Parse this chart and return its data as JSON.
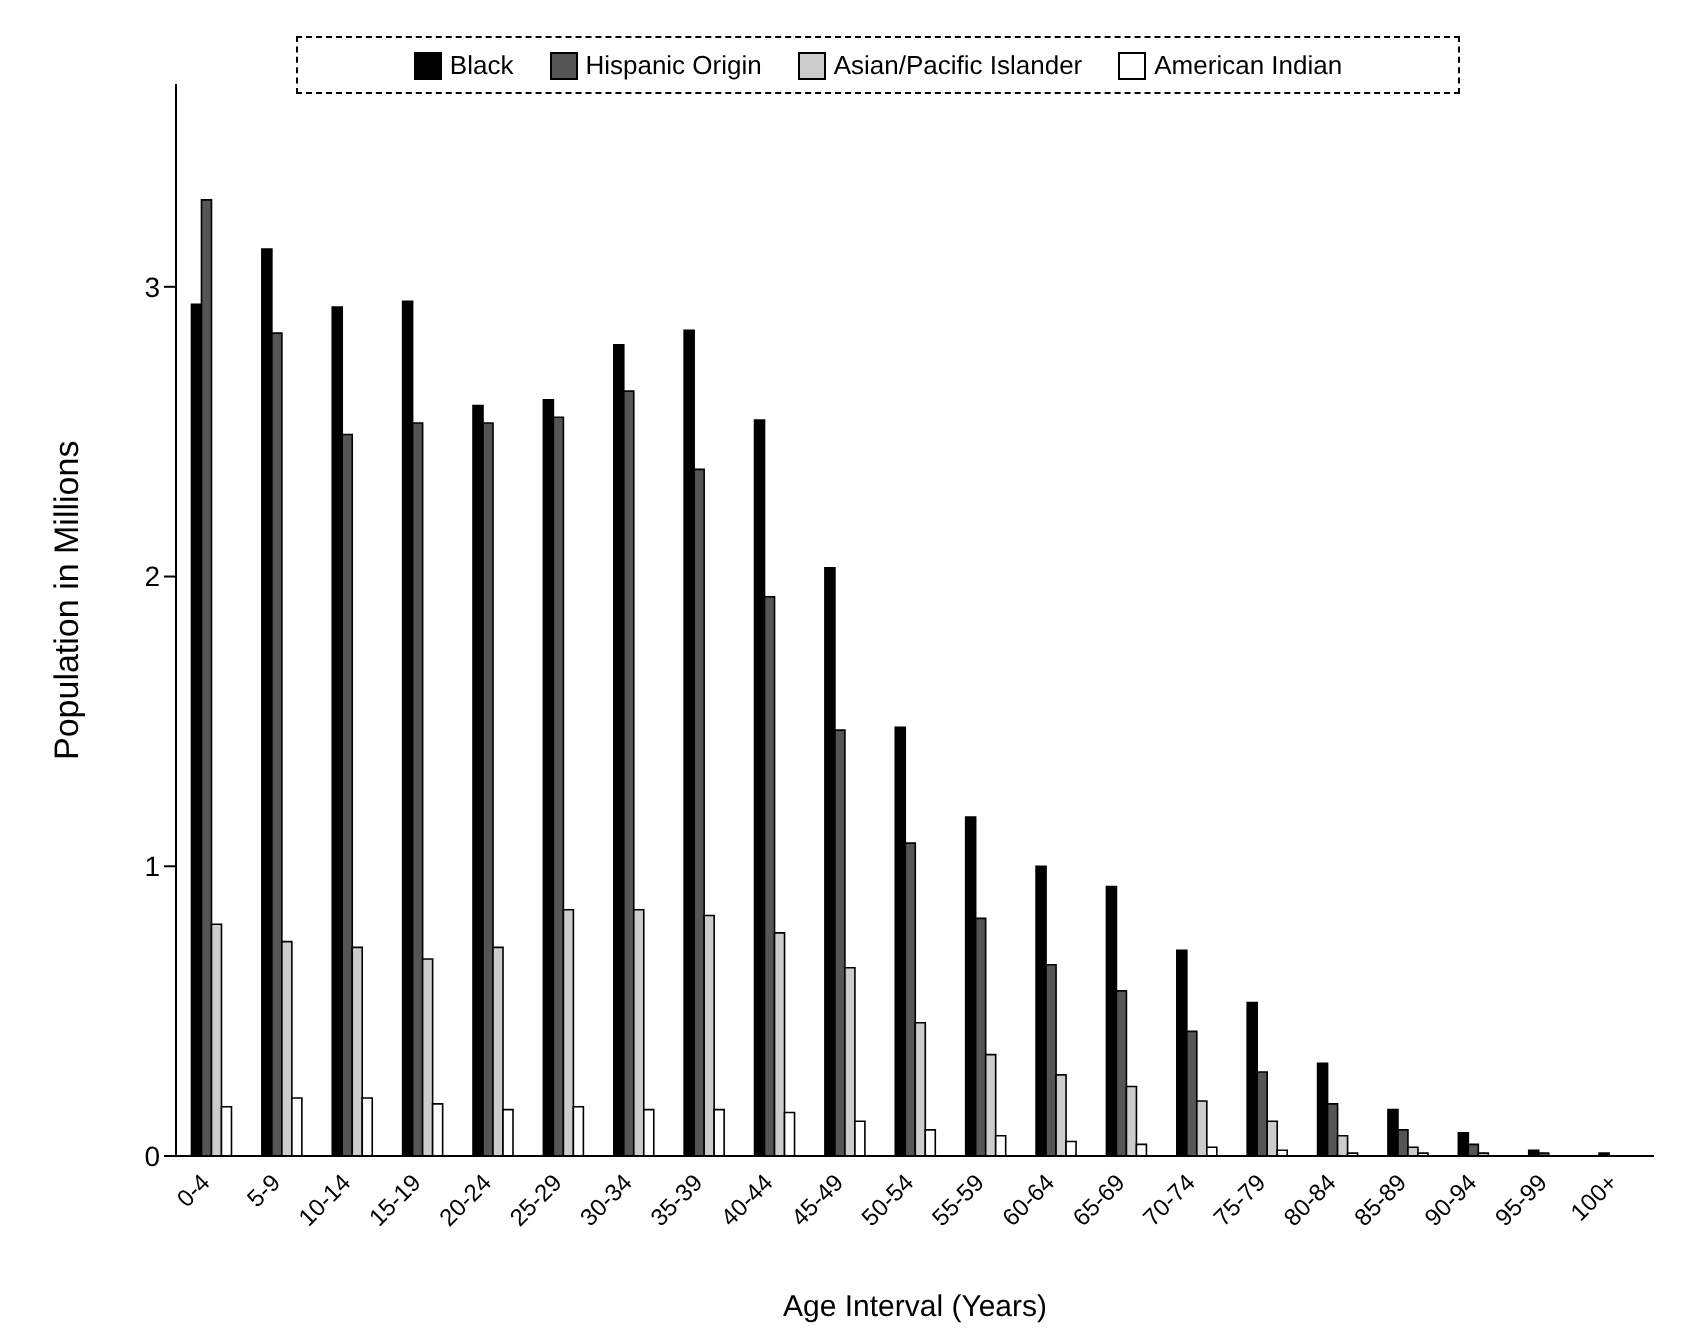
{
  "chart_data": {
    "type": "bar",
    "xlabel": "Age Interval (Years)",
    "ylabel": "Population in Millions",
    "categories": [
      "0-4",
      "5-9",
      "10-14",
      "15-19",
      "20-24",
      "25-29",
      "30-34",
      "35-39",
      "40-44",
      "45-49",
      "50-54",
      "55-59",
      "60-64",
      "65-69",
      "70-74",
      "75-79",
      "80-84",
      "85-89",
      "90-94",
      "95-99",
      "100+"
    ],
    "series": [
      {
        "name": "Black",
        "color": "#000000",
        "values": [
          2.94,
          3.13,
          2.93,
          2.95,
          2.59,
          2.61,
          2.8,
          2.85,
          2.54,
          2.03,
          1.48,
          1.17,
          1.0,
          0.93,
          0.71,
          0.53,
          0.32,
          0.16,
          0.08,
          0.02,
          0.01
        ]
      },
      {
        "name": "Hispanic Origin",
        "color": "#555555",
        "values": [
          3.3,
          2.84,
          2.49,
          2.53,
          2.53,
          2.55,
          2.64,
          2.37,
          1.93,
          1.47,
          1.08,
          0.82,
          0.66,
          0.57,
          0.43,
          0.29,
          0.18,
          0.09,
          0.04,
          0.01,
          0.0
        ]
      },
      {
        "name": "Asian/Pacific Islander",
        "color": "#cccccc",
        "values": [
          0.8,
          0.74,
          0.72,
          0.68,
          0.72,
          0.85,
          0.85,
          0.83,
          0.77,
          0.65,
          0.46,
          0.35,
          0.28,
          0.24,
          0.19,
          0.12,
          0.07,
          0.03,
          0.01,
          0.0,
          0.0
        ]
      },
      {
        "name": "American Indian",
        "color": "#ffffff",
        "values": [
          0.17,
          0.2,
          0.2,
          0.18,
          0.16,
          0.17,
          0.16,
          0.16,
          0.15,
          0.12,
          0.09,
          0.07,
          0.05,
          0.04,
          0.03,
          0.02,
          0.01,
          0.01,
          0.0,
          0.0,
          0.0
        ]
      }
    ],
    "ylim": [
      0,
      3.7
    ],
    "yticks": [
      0,
      1,
      2,
      3
    ],
    "grid": false,
    "legend": "top"
  }
}
